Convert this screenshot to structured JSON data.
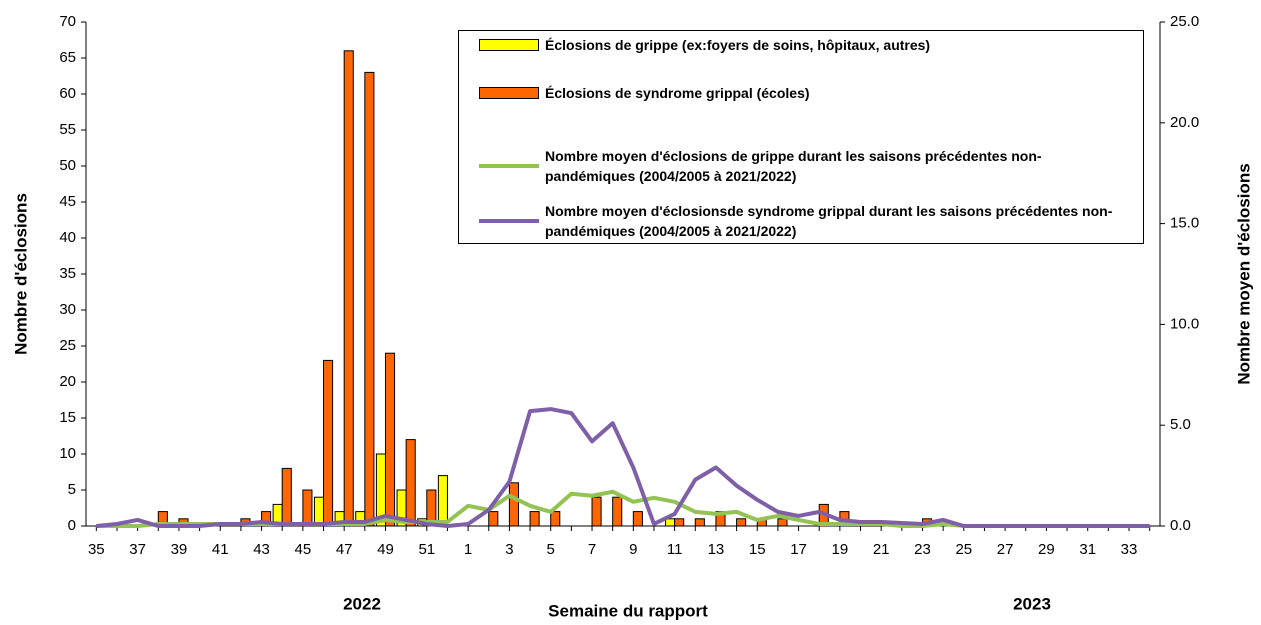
{
  "chart_data": {
    "type": "bar_line",
    "x_label": "Semaine du rapport",
    "y_label": "Nombre d'éclosions",
    "y2_label": "Nombre moyen d'éclosions",
    "annotations": [
      "2022",
      "2023"
    ],
    "categories": [
      "35",
      null,
      "37",
      null,
      "39",
      null,
      "41",
      null,
      "43",
      null,
      "45",
      null,
      "47",
      null,
      "49",
      null,
      "51",
      null,
      "1",
      null,
      "3",
      null,
      "5",
      null,
      "7",
      null,
      "9",
      null,
      "11",
      null,
      "13",
      null,
      "15",
      null,
      "17",
      null,
      "19",
      null,
      "21",
      null,
      "23",
      null,
      "25",
      null,
      "27",
      null,
      "29",
      null,
      "31",
      null,
      "33",
      null
    ],
    "ylim": [
      0,
      70
    ],
    "yticks": [
      0,
      5,
      10,
      15,
      20,
      25,
      30,
      35,
      40,
      45,
      50,
      55,
      60,
      65,
      70
    ],
    "y2lim": [
      0,
      25
    ],
    "y2ticks": [
      {
        "value": 0,
        "label": "0.0"
      },
      {
        "value": 5,
        "label": "5.0"
      },
      {
        "value": 10,
        "label": "10.0"
      },
      {
        "value": 15,
        "label": "15.0"
      },
      {
        "value": 20,
        "label": "20.0"
      },
      {
        "value": 25,
        "label": "25.0"
      }
    ],
    "series": [
      {
        "name": "Éclosions de grippe (ex:foyers de soins, hôpitaux, autres)",
        "type": "bar",
        "color": "#ffff00",
        "values": [
          0,
          0,
          0,
          0,
          0,
          0,
          0,
          0,
          0,
          3,
          0,
          4,
          2,
          2,
          10,
          5,
          1,
          7,
          0,
          0,
          0,
          0,
          0,
          0,
          0,
          0,
          0,
          0,
          1,
          0,
          0,
          0,
          0,
          0,
          0,
          0,
          0,
          0,
          0,
          0,
          0,
          0,
          0,
          0,
          0,
          0,
          0,
          0,
          0,
          0,
          0,
          0
        ]
      },
      {
        "name": "Éclosions de syndrome grippal (écoles)",
        "type": "bar",
        "color": "#ff6600",
        "values": [
          0,
          0,
          0,
          2,
          1,
          0,
          0,
          1,
          2,
          8,
          5,
          23,
          66,
          63,
          24,
          12,
          5,
          0,
          0,
          2,
          6,
          2,
          2,
          0,
          4,
          4,
          2,
          0,
          1,
          1,
          2,
          1,
          1,
          1,
          0,
          3,
          2,
          0,
          0,
          0,
          1,
          0,
          0,
          0,
          0,
          0,
          0,
          0,
          0,
          0,
          0,
          0
        ]
      },
      {
        "name": "Nombre moyen d'éclosions de grippe durant les saisons précédentes non-pandémiques (2004/2005 à 2021/2022)",
        "type": "line",
        "axis": "y2",
        "color": "#92c353",
        "values": [
          0,
          0,
          0,
          0.1,
          0.1,
          0.1,
          0.1,
          0.1,
          0.1,
          0.1,
          0.1,
          0.1,
          0.1,
          0.1,
          0.3,
          0.2,
          0.2,
          0.2,
          1,
          0.8,
          1.5,
          1,
          0.7,
          1.6,
          1.5,
          1.7,
          1.2,
          1.4,
          1.2,
          0.7,
          0.6,
          0.7,
          0.3,
          0.5,
          0.3,
          0.1,
          0.1,
          0.1,
          0.1,
          0,
          0,
          0.1,
          0,
          0,
          0,
          0,
          0,
          0,
          0,
          0,
          0,
          0
        ]
      },
      {
        "name": "Nombre moyen d'éclosionsde syndrome grippal  durant les saisons précédentes non-pandémiques (2004/2005 à 2021/2022)",
        "type": "line",
        "axis": "y2",
        "color": "#7f5fa8",
        "values": [
          0,
          0.1,
          0.3,
          0,
          0,
          0,
          0.1,
          0.1,
          0.2,
          0.1,
          0.1,
          0.1,
          0.2,
          0.2,
          0.5,
          0.3,
          0.1,
          0,
          0.1,
          0.8,
          2.2,
          5.7,
          5.8,
          5.6,
          4.2,
          5.1,
          2.9,
          0.1,
          0.6,
          2.3,
          2.9,
          2,
          1.3,
          0.7,
          0.5,
          0.7,
          0.3,
          0.2,
          0.2,
          0.15,
          0.1,
          0.3,
          0,
          0,
          0,
          0,
          0,
          0,
          0,
          0,
          0,
          0
        ]
      }
    ]
  }
}
